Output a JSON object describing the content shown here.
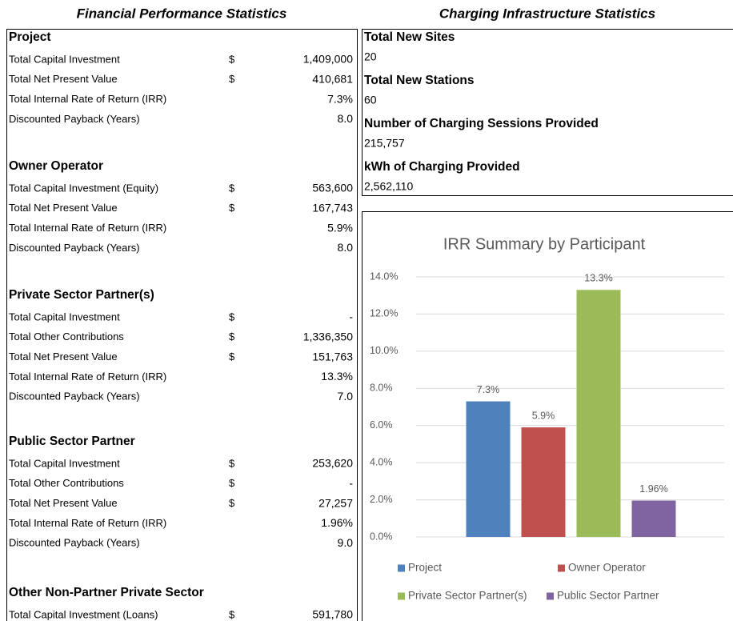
{
  "financial": {
    "title": "Financial Performance Statistics",
    "groups": [
      {
        "name": "Project",
        "rows": [
          {
            "label": "Total Capital Investment",
            "currency": "$",
            "value": "1,409,000"
          },
          {
            "label": "Total Net Present Value",
            "currency": "$",
            "value": "410,681"
          },
          {
            "label": "Total Internal Rate of Return (IRR)",
            "value": "7.3%"
          },
          {
            "label": "Discounted Payback (Years)",
            "value": "8.0"
          }
        ]
      },
      {
        "name": "Owner Operator",
        "rows": [
          {
            "label": "Total Capital Investment (Equity)",
            "currency": "$",
            "value": "563,600"
          },
          {
            "label": "Total Net Present Value",
            "currency": "$",
            "value": "167,743"
          },
          {
            "label": "Total Internal Rate of Return (IRR)",
            "value": "5.9%"
          },
          {
            "label": "Discounted Payback (Years)",
            "value": "8.0"
          }
        ]
      },
      {
        "name": "Private Sector Partner(s)",
        "rows": [
          {
            "label": "Total Capital Investment",
            "currency": "$",
            "value": "-"
          },
          {
            "label": "Total Other Contributions",
            "currency": "$",
            "value": "1,336,350"
          },
          {
            "label": "Total Net Present Value",
            "currency": "$",
            "value": "151,763"
          },
          {
            "label": "Total Internal Rate of Return (IRR)",
            "value": "13.3%"
          },
          {
            "label": "Discounted Payback (Years)",
            "value": "7.0"
          }
        ]
      },
      {
        "name": "Public Sector Partner",
        "rows": [
          {
            "label": "Total Capital Investment",
            "currency": "$",
            "value": "253,620"
          },
          {
            "label": "Total Other Contributions",
            "currency": "$",
            "value": "-"
          },
          {
            "label": "Total Net Present Value",
            "currency": "$",
            "value": "27,257"
          },
          {
            "label": "Total Internal Rate of Return (IRR)",
            "value": "1.96%"
          },
          {
            "label": "Discounted Payback (Years)",
            "value": "9.0"
          }
        ]
      },
      {
        "name": "Other Non-Partner Private Sector",
        "rows": [
          {
            "label": "Total Capital Investment (Loans)",
            "currency": "$",
            "value": "591,780"
          }
        ]
      }
    ]
  },
  "infrastructure": {
    "title": "Charging Infrastructure Statistics",
    "items": [
      {
        "label": "Total New Sites",
        "value": "20"
      },
      {
        "label": "Total New Stations",
        "value": "60"
      },
      {
        "label": "Number of Charging Sessions Provided",
        "value": "215,757"
      },
      {
        "label": "kWh of Charging Provided",
        "value": "2,562,110"
      }
    ]
  },
  "chart_data": {
    "type": "bar",
    "title": "IRR Summary by Participant",
    "categories": [
      "Project",
      "Owner Operator",
      "Private Sector Partner(s)",
      "Public Sector Partner"
    ],
    "values": [
      7.3,
      5.9,
      13.3,
      1.96
    ],
    "value_labels": [
      "7.3%",
      "5.9%",
      "13.3%",
      "1.96%"
    ],
    "colors": [
      "#4f81bd",
      "#c0504d",
      "#9bbb59",
      "#8064a2"
    ],
    "ylim": [
      0,
      14
    ],
    "yticks": [
      {
        "value": 0,
        "label": "0.0%"
      },
      {
        "value": 2,
        "label": "2.0%"
      },
      {
        "value": 4,
        "label": "4.0%"
      },
      {
        "value": 6,
        "label": "6.0%"
      },
      {
        "value": 8,
        "label": "8.0%"
      },
      {
        "value": 10,
        "label": "10.0%"
      },
      {
        "value": 12,
        "label": "12.0%"
      },
      {
        "value": 14,
        "label": "14.0%"
      }
    ],
    "grid": true,
    "legend": "bottom"
  }
}
